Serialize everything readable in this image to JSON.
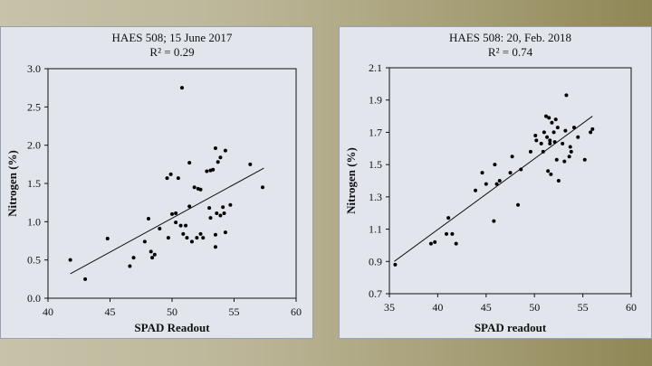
{
  "chart_data": [
    {
      "type": "scatter",
      "title": "HAES 508; 15 June 2017",
      "subtitle": "R² = 0.29",
      "xlabel": "SPAD Readout",
      "ylabel": "Nitrogen (%)",
      "xlim": [
        40,
        60
      ],
      "ylim": [
        0,
        3
      ],
      "xticks": [
        "40",
        "45",
        "50",
        "55",
        "60"
      ],
      "yticks": [
        "0.0",
        "0.5",
        "1.0",
        "1.5",
        "2.0",
        "2.5",
        "3.0"
      ],
      "trendline": [
        [
          41.8,
          0.32
        ],
        [
          57.4,
          1.7
        ]
      ],
      "points": [
        [
          41.8,
          0.5
        ],
        [
          43.0,
          0.25
        ],
        [
          44.8,
          0.78
        ],
        [
          46.6,
          0.42
        ],
        [
          46.9,
          0.53
        ],
        [
          47.8,
          0.74
        ],
        [
          48.1,
          1.04
        ],
        [
          48.3,
          0.61
        ],
        [
          48.4,
          0.53
        ],
        [
          48.6,
          0.57
        ],
        [
          49.0,
          0.91
        ],
        [
          49.6,
          1.57
        ],
        [
          49.7,
          0.79
        ],
        [
          49.9,
          1.62
        ],
        [
          50.0,
          1.1
        ],
        [
          50.3,
          1.11
        ],
        [
          50.3,
          0.99
        ],
        [
          50.5,
          1.57
        ],
        [
          50.7,
          0.95
        ],
        [
          50.8,
          2.75
        ],
        [
          50.9,
          0.84
        ],
        [
          51.1,
          0.95
        ],
        [
          51.2,
          0.79
        ],
        [
          51.4,
          1.2
        ],
        [
          51.4,
          1.77
        ],
        [
          51.6,
          0.74
        ],
        [
          51.8,
          1.45
        ],
        [
          52.0,
          0.79
        ],
        [
          52.1,
          1.43
        ],
        [
          52.3,
          1.42
        ],
        [
          52.3,
          0.84
        ],
        [
          52.5,
          0.79
        ],
        [
          52.8,
          1.66
        ],
        [
          53.0,
          1.18
        ],
        [
          53.1,
          1.05
        ],
        [
          53.1,
          1.67
        ],
        [
          53.3,
          1.68
        ],
        [
          53.5,
          0.67
        ],
        [
          53.5,
          0.83
        ],
        [
          53.5,
          1.96
        ],
        [
          53.6,
          1.11
        ],
        [
          53.7,
          1.78
        ],
        [
          53.9,
          1.84
        ],
        [
          53.9,
          1.08
        ],
        [
          54.1,
          1.19
        ],
        [
          54.2,
          1.11
        ],
        [
          54.3,
          0.86
        ],
        [
          54.3,
          1.93
        ],
        [
          54.7,
          1.22
        ],
        [
          56.3,
          1.75
        ],
        [
          57.3,
          1.45
        ]
      ]
    },
    {
      "type": "scatter",
      "title": "HAES 508: 20, Feb. 2018",
      "subtitle": "R² = 0.74",
      "xlabel": "SPAD readout",
      "ylabel": "Nitrogen (%)",
      "xlim": [
        35,
        60
      ],
      "ylim": [
        0.7,
        2.1
      ],
      "xticks": [
        "35",
        "40",
        "45",
        "50",
        "55",
        "60"
      ],
      "yticks": [
        "0.7",
        "0.9",
        "1.1",
        "1.3",
        "1.5",
        "1.7",
        "1.9",
        "2.1"
      ],
      "trendline": [
        [
          35.5,
          0.9
        ],
        [
          56.0,
          1.8
        ]
      ],
      "points": [
        [
          35.6,
          0.88
        ],
        [
          39.3,
          1.01
        ],
        [
          39.7,
          1.02
        ],
        [
          40.9,
          1.07
        ],
        [
          41.1,
          1.17
        ],
        [
          41.5,
          1.07
        ],
        [
          41.9,
          1.01
        ],
        [
          43.9,
          1.34
        ],
        [
          44.6,
          1.45
        ],
        [
          45.0,
          1.38
        ],
        [
          45.8,
          1.15
        ],
        [
          45.9,
          1.5
        ],
        [
          46.1,
          1.38
        ],
        [
          46.4,
          1.4
        ],
        [
          47.5,
          1.45
        ],
        [
          47.7,
          1.55
        ],
        [
          48.3,
          1.25
        ],
        [
          48.6,
          1.47
        ],
        [
          49.6,
          1.58
        ],
        [
          50.1,
          1.68
        ],
        [
          50.2,
          1.65
        ],
        [
          50.7,
          1.63
        ],
        [
          50.9,
          1.58
        ],
        [
          51.0,
          1.7
        ],
        [
          51.2,
          1.8
        ],
        [
          51.3,
          1.67
        ],
        [
          51.4,
          1.46
        ],
        [
          51.5,
          1.79
        ],
        [
          51.6,
          1.65
        ],
        [
          51.6,
          1.63
        ],
        [
          51.7,
          1.44
        ],
        [
          51.8,
          1.76
        ],
        [
          52.0,
          1.7
        ],
        [
          52.1,
          1.64
        ],
        [
          52.2,
          1.78
        ],
        [
          52.3,
          1.53
        ],
        [
          52.4,
          1.73
        ],
        [
          52.5,
          1.4
        ],
        [
          52.9,
          1.63
        ],
        [
          53.1,
          1.52
        ],
        [
          53.2,
          1.71
        ],
        [
          53.3,
          1.93
        ],
        [
          53.6,
          1.55
        ],
        [
          53.7,
          1.61
        ],
        [
          53.8,
          1.58
        ],
        [
          54.1,
          1.73
        ],
        [
          54.5,
          1.67
        ],
        [
          55.2,
          1.53
        ],
        [
          55.8,
          1.7
        ],
        [
          56.0,
          1.72
        ]
      ]
    }
  ]
}
